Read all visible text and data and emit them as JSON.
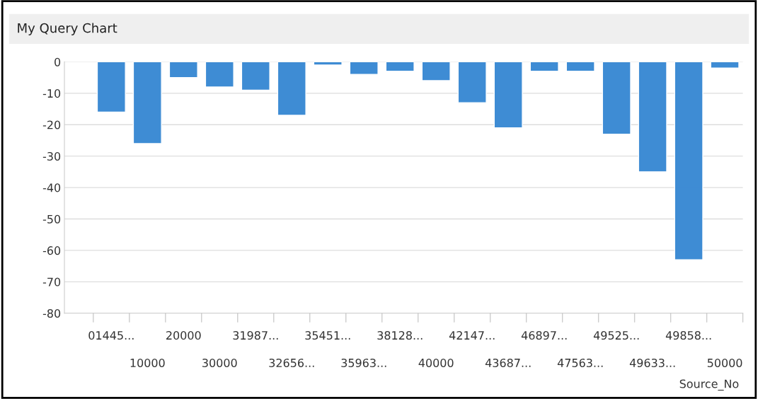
{
  "chart_data": {
    "type": "bar",
    "title": "My Query Chart",
    "xlabel": "Source_No",
    "categories": [
      "01445...",
      "10000",
      "20000",
      "30000",
      "31987...",
      "32656...",
      "35451...",
      "35963...",
      "38128...",
      "40000",
      "42147...",
      "43687...",
      "46897...",
      "47563...",
      "49525...",
      "49633...",
      "49858...",
      "50000"
    ],
    "series": [
      {
        "color": "#3b8ad4",
        "values": [
          -16,
          -26,
          -5,
          -8,
          -9,
          -17,
          -1,
          -4,
          -3,
          -6,
          -13,
          -21,
          -3,
          -3,
          -23,
          -35,
          -63,
          -2
        ]
      }
    ],
    "ylim": [
      -80,
      0
    ],
    "yticks": [
      -80,
      -70,
      -60,
      -50,
      -40,
      -30,
      -20,
      -10,
      0
    ],
    "grid": "y"
  }
}
